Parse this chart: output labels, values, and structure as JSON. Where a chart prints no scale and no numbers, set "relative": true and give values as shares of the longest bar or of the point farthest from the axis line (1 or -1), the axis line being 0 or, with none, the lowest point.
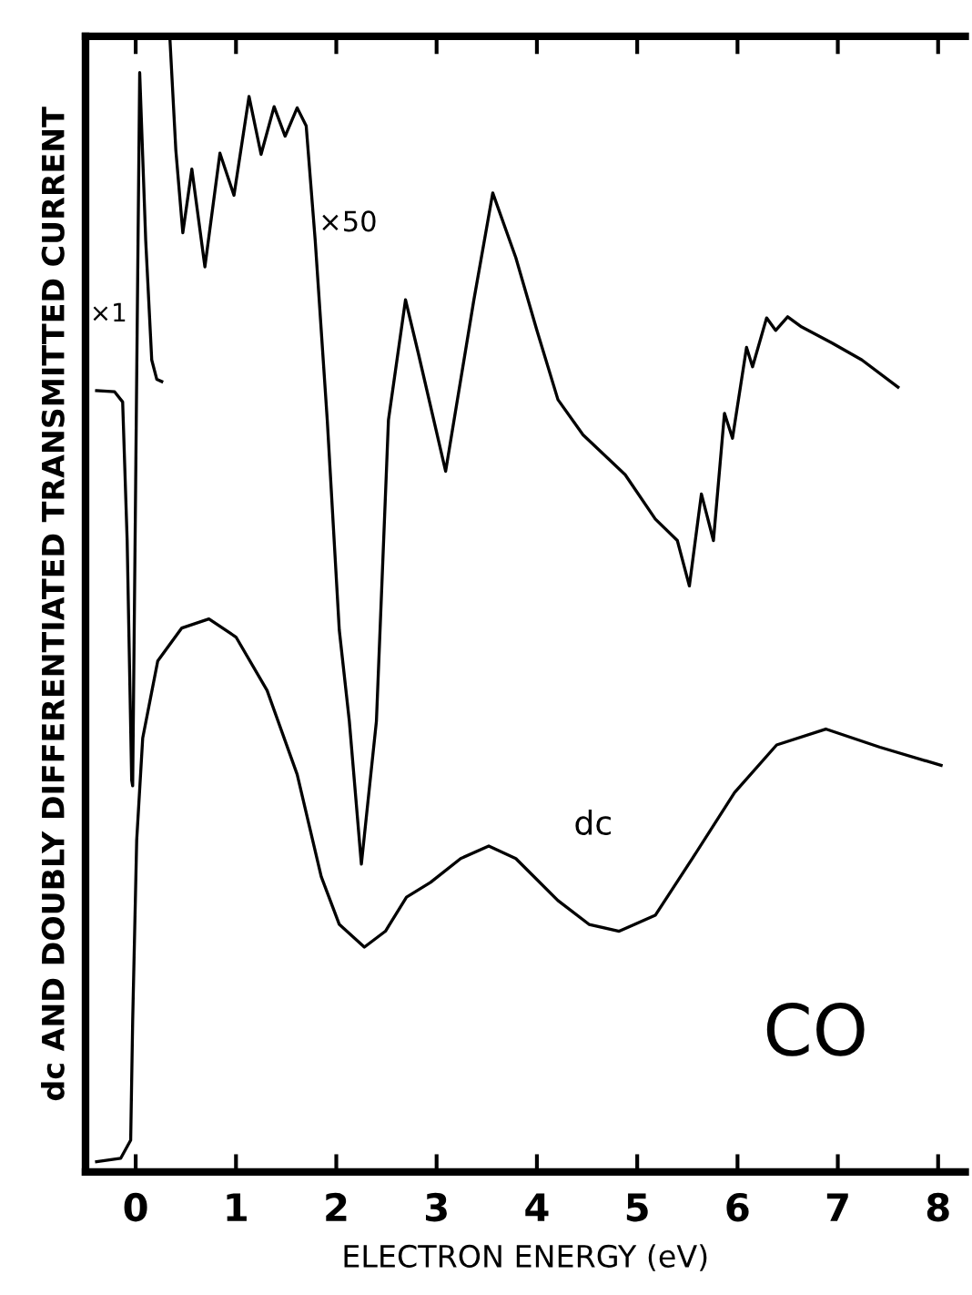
{
  "chart_data": {
    "type": "line",
    "relative": true,
    "xlabel": "ELECTRON ENERGY (eV)",
    "ylabel": "dc AND DOUBLY DIFFERENTIATED TRANSMITTED CURRENT",
    "xlim": [
      -0.5,
      8.27
    ],
    "xticks": [
      0,
      1,
      2,
      3,
      4,
      5,
      6,
      7,
      8
    ],
    "tick_labels": "x",
    "grid": false,
    "legend": false,
    "series": [
      {
        "color": "#000000",
        "x": [
          -0.39,
          -0.21,
          -0.13,
          -0.085,
          -0.04,
          -0.03,
          0.0,
          0.04,
          0.1,
          0.16,
          0.21,
          0.26
        ],
        "values": [
          0.688,
          0.687,
          0.678,
          0.556,
          0.345,
          0.34,
          0.609,
          0.968,
          0.82,
          0.715,
          0.698,
          0.696
        ]
      },
      {
        "color": "#000000",
        "x": [
          0.34,
          0.4,
          0.47,
          0.56,
          0.69,
          0.84,
          0.98,
          1.13,
          1.25,
          1.38,
          1.49,
          1.61,
          1.7,
          1.79,
          1.91,
          2.03,
          2.13,
          2.25,
          2.4,
          2.52,
          2.69,
          2.82,
          3.09,
          3.37,
          3.56,
          3.79,
          4.0,
          4.21,
          4.46,
          4.88,
          5.18,
          5.4,
          5.52,
          5.64,
          5.76,
          5.87,
          5.95,
          6.09,
          6.15,
          6.29,
          6.38,
          6.5,
          6.64,
          6.94,
          7.24,
          7.6
        ],
        "values": [
          1.0,
          0.9,
          0.827,
          0.883,
          0.797,
          0.897,
          0.86,
          0.947,
          0.896,
          0.938,
          0.912,
          0.937,
          0.921,
          0.82,
          0.662,
          0.477,
          0.397,
          0.271,
          0.397,
          0.662,
          0.768,
          0.72,
          0.617,
          0.767,
          0.862,
          0.805,
          0.741,
          0.68,
          0.649,
          0.614,
          0.575,
          0.556,
          0.516,
          0.597,
          0.556,
          0.668,
          0.646,
          0.726,
          0.709,
          0.752,
          0.741,
          0.753,
          0.744,
          0.73,
          0.715,
          0.691
        ]
      },
      {
        "color": "#000000",
        "x": [
          -0.39,
          -0.15,
          -0.05,
          -0.03,
          0.01,
          0.07,
          0.22,
          0.46,
          0.73,
          1.0,
          1.31,
          1.61,
          1.85,
          2.03,
          2.28,
          2.49,
          2.7,
          2.94,
          3.24,
          3.52,
          3.79,
          4.21,
          4.52,
          4.82,
          5.18,
          5.55,
          5.97,
          6.39,
          6.88,
          7.42,
          8.03
        ],
        "values": [
          0.009,
          0.012,
          0.028,
          0.133,
          0.292,
          0.382,
          0.45,
          0.479,
          0.487,
          0.471,
          0.424,
          0.35,
          0.26,
          0.218,
          0.198,
          0.212,
          0.242,
          0.255,
          0.276,
          0.287,
          0.276,
          0.239,
          0.218,
          0.212,
          0.226,
          0.276,
          0.334,
          0.376,
          0.39,
          0.374,
          0.358
        ]
      }
    ],
    "annotations": [
      "×1",
      "×50",
      "dc",
      "CO"
    ]
  }
}
